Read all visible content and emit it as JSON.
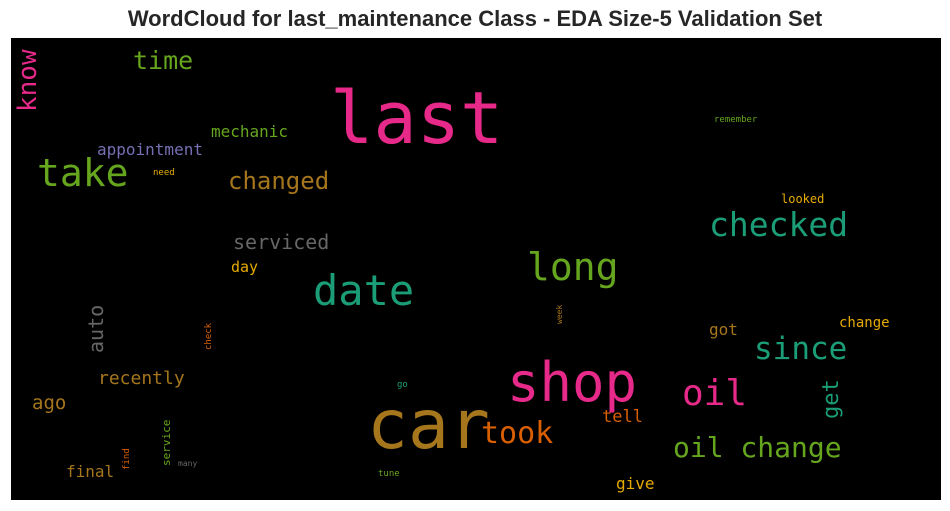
{
  "title": "WordCloud for last_maintenance Class - EDA Size-5 Validation Set",
  "words": [
    {
      "text": "last",
      "color": "#e7298a"
    },
    {
      "text": "car",
      "color": "#a6761d"
    },
    {
      "text": "shop",
      "color": "#e7298a"
    },
    {
      "text": "date",
      "color": "#1b9e77"
    },
    {
      "text": "take",
      "color": "#66a61e"
    },
    {
      "text": "long",
      "color": "#66a61e"
    },
    {
      "text": "checked",
      "color": "#1b9e77"
    },
    {
      "text": "oil",
      "color": "#e7298a"
    },
    {
      "text": "since",
      "color": "#1b9e77"
    },
    {
      "text": "oil change",
      "color": "#66a61e"
    },
    {
      "text": "took",
      "color": "#d95f02"
    },
    {
      "text": "changed",
      "color": "#a6761d"
    },
    {
      "text": "time",
      "color": "#66a61e"
    },
    {
      "text": "know",
      "color": "#e7298a"
    },
    {
      "text": "serviced",
      "color": "#666666"
    },
    {
      "text": "get",
      "color": "#1b9e77"
    },
    {
      "text": "auto",
      "color": "#666666"
    },
    {
      "text": "recently",
      "color": "#a6761d"
    },
    {
      "text": "ago",
      "color": "#a6761d"
    },
    {
      "text": "appointment",
      "color": "#7570b3"
    },
    {
      "text": "mechanic",
      "color": "#66a61e"
    },
    {
      "text": "tell",
      "color": "#d95f02"
    },
    {
      "text": "final",
      "color": "#a6761d"
    },
    {
      "text": "give",
      "color": "#e6ab02"
    },
    {
      "text": "got",
      "color": "#a6761d"
    },
    {
      "text": "change",
      "color": "#e6ab02"
    },
    {
      "text": "day",
      "color": "#e6ab02"
    },
    {
      "text": "looked",
      "color": "#e6ab02"
    },
    {
      "text": "remember",
      "color": "#66a61e"
    },
    {
      "text": "need",
      "color": "#e6ab02"
    },
    {
      "text": "check",
      "color": "#d95f02"
    },
    {
      "text": "week",
      "color": "#a6761d"
    },
    {
      "text": "service",
      "color": "#66a61e"
    },
    {
      "text": "find",
      "color": "#d95f02"
    },
    {
      "text": "many",
      "color": "#666666"
    },
    {
      "text": "go",
      "color": "#1b9e77"
    },
    {
      "text": "tune",
      "color": "#66a61e"
    }
  ]
}
